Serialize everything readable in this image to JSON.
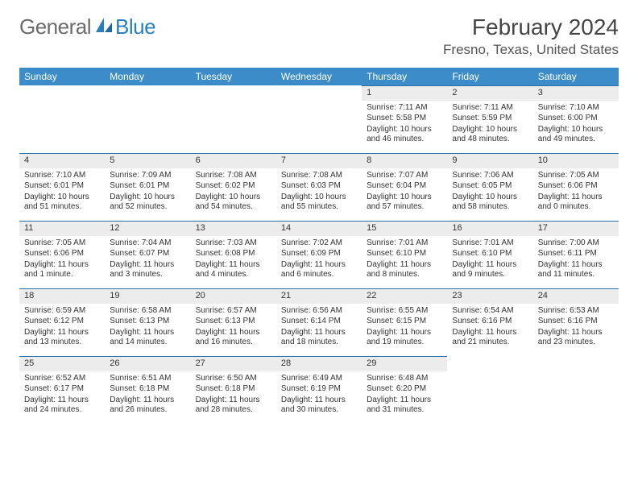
{
  "logo": {
    "word1": "General",
    "word2": "Blue"
  },
  "title": "February 2024",
  "location": "Fresno, Texas, United States",
  "colors": {
    "header_bg": "#3b8cc8",
    "daynum_bg": "#ececec",
    "day_border": "#2a6fa8",
    "logo_gray": "#6b6b6b",
    "logo_blue": "#2a7fbf"
  },
  "columns": [
    "Sunday",
    "Monday",
    "Tuesday",
    "Wednesday",
    "Thursday",
    "Friday",
    "Saturday"
  ],
  "weeks": [
    [
      null,
      null,
      null,
      null,
      {
        "n": "1",
        "sunrise": "7:11 AM",
        "sunset": "5:58 PM",
        "daylight": "10 hours and 46 minutes."
      },
      {
        "n": "2",
        "sunrise": "7:11 AM",
        "sunset": "5:59 PM",
        "daylight": "10 hours and 48 minutes."
      },
      {
        "n": "3",
        "sunrise": "7:10 AM",
        "sunset": "6:00 PM",
        "daylight": "10 hours and 49 minutes."
      }
    ],
    [
      {
        "n": "4",
        "sunrise": "7:10 AM",
        "sunset": "6:01 PM",
        "daylight": "10 hours and 51 minutes."
      },
      {
        "n": "5",
        "sunrise": "7:09 AM",
        "sunset": "6:01 PM",
        "daylight": "10 hours and 52 minutes."
      },
      {
        "n": "6",
        "sunrise": "7:08 AM",
        "sunset": "6:02 PM",
        "daylight": "10 hours and 54 minutes."
      },
      {
        "n": "7",
        "sunrise": "7:08 AM",
        "sunset": "6:03 PM",
        "daylight": "10 hours and 55 minutes."
      },
      {
        "n": "8",
        "sunrise": "7:07 AM",
        "sunset": "6:04 PM",
        "daylight": "10 hours and 57 minutes."
      },
      {
        "n": "9",
        "sunrise": "7:06 AM",
        "sunset": "6:05 PM",
        "daylight": "10 hours and 58 minutes."
      },
      {
        "n": "10",
        "sunrise": "7:05 AM",
        "sunset": "6:06 PM",
        "daylight": "11 hours and 0 minutes."
      }
    ],
    [
      {
        "n": "11",
        "sunrise": "7:05 AM",
        "sunset": "6:06 PM",
        "daylight": "11 hours and 1 minute."
      },
      {
        "n": "12",
        "sunrise": "7:04 AM",
        "sunset": "6:07 PM",
        "daylight": "11 hours and 3 minutes."
      },
      {
        "n": "13",
        "sunrise": "7:03 AM",
        "sunset": "6:08 PM",
        "daylight": "11 hours and 4 minutes."
      },
      {
        "n": "14",
        "sunrise": "7:02 AM",
        "sunset": "6:09 PM",
        "daylight": "11 hours and 6 minutes."
      },
      {
        "n": "15",
        "sunrise": "7:01 AM",
        "sunset": "6:10 PM",
        "daylight": "11 hours and 8 minutes."
      },
      {
        "n": "16",
        "sunrise": "7:01 AM",
        "sunset": "6:10 PM",
        "daylight": "11 hours and 9 minutes."
      },
      {
        "n": "17",
        "sunrise": "7:00 AM",
        "sunset": "6:11 PM",
        "daylight": "11 hours and 11 minutes."
      }
    ],
    [
      {
        "n": "18",
        "sunrise": "6:59 AM",
        "sunset": "6:12 PM",
        "daylight": "11 hours and 13 minutes."
      },
      {
        "n": "19",
        "sunrise": "6:58 AM",
        "sunset": "6:13 PM",
        "daylight": "11 hours and 14 minutes."
      },
      {
        "n": "20",
        "sunrise": "6:57 AM",
        "sunset": "6:13 PM",
        "daylight": "11 hours and 16 minutes."
      },
      {
        "n": "21",
        "sunrise": "6:56 AM",
        "sunset": "6:14 PM",
        "daylight": "11 hours and 18 minutes."
      },
      {
        "n": "22",
        "sunrise": "6:55 AM",
        "sunset": "6:15 PM",
        "daylight": "11 hours and 19 minutes."
      },
      {
        "n": "23",
        "sunrise": "6:54 AM",
        "sunset": "6:16 PM",
        "daylight": "11 hours and 21 minutes."
      },
      {
        "n": "24",
        "sunrise": "6:53 AM",
        "sunset": "6:16 PM",
        "daylight": "11 hours and 23 minutes."
      }
    ],
    [
      {
        "n": "25",
        "sunrise": "6:52 AM",
        "sunset": "6:17 PM",
        "daylight": "11 hours and 24 minutes."
      },
      {
        "n": "26",
        "sunrise": "6:51 AM",
        "sunset": "6:18 PM",
        "daylight": "11 hours and 26 minutes."
      },
      {
        "n": "27",
        "sunrise": "6:50 AM",
        "sunset": "6:18 PM",
        "daylight": "11 hours and 28 minutes."
      },
      {
        "n": "28",
        "sunrise": "6:49 AM",
        "sunset": "6:19 PM",
        "daylight": "11 hours and 30 minutes."
      },
      {
        "n": "29",
        "sunrise": "6:48 AM",
        "sunset": "6:20 PM",
        "daylight": "11 hours and 31 minutes."
      },
      null,
      null
    ]
  ],
  "labels": {
    "sunrise": "Sunrise: ",
    "sunset": "Sunset: ",
    "daylight": "Daylight: "
  }
}
